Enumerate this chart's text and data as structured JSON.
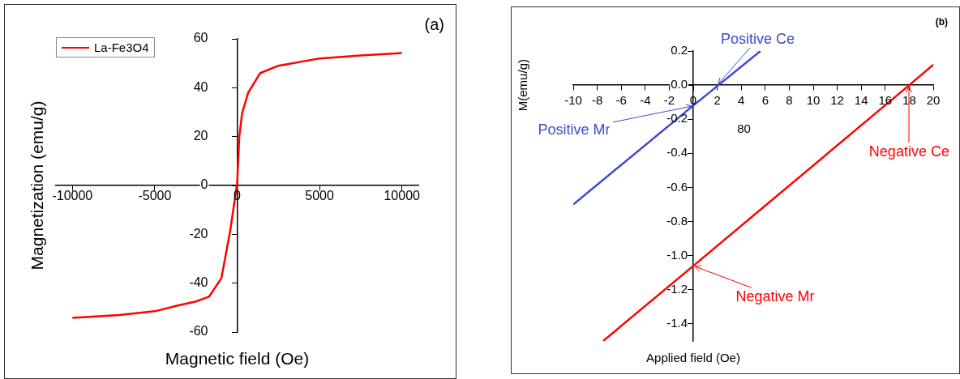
{
  "chart_data": [
    {
      "type": "line",
      "title": "(a)",
      "xlabel": "Magnetic field (Oe)",
      "ylabel": "Magnetization (emu/g)",
      "marker": "none",
      "grid": false,
      "legend": "top left",
      "x": [
        -10000,
        -7150,
        -5000,
        -3500,
        -2500,
        -1700,
        -960,
        -420,
        -150,
        0,
        40,
        130,
        300,
        670,
        1400,
        2500,
        5000,
        7500,
        10000
      ],
      "series": [
        {
          "name": "La-Fe3O4",
          "color": "#ff0000",
          "values": [
            -54.2,
            -53,
            -51.5,
            -49,
            -47.5,
            -45.5,
            -38,
            -18.5,
            -6,
            1,
            7,
            20,
            29.5,
            38,
            46,
            49,
            52,
            53.2,
            54.2
          ]
        }
      ],
      "xlim": [
        -11000,
        11000
      ],
      "xticks": [
        -10000,
        -5000,
        0,
        5000,
        10000
      ],
      "ylim": [
        -60,
        60
      ],
      "yticks": [
        -60,
        -40,
        -20,
        0,
        20,
        40,
        60
      ]
    },
    {
      "type": "line",
      "title": "(b)",
      "xlabel": "Applied field (Oe)",
      "ylabel": "M(emu/g)",
      "marker": "none",
      "grid": false,
      "legend": false,
      "series": [
        {
          "color": "#3f48cc",
          "x": [
            -10,
            0,
            2.1,
            5.6
          ],
          "values": [
            -0.7,
            -0.12,
            0,
            0.2
          ]
        },
        {
          "color": "#ff0000",
          "x": [
            -7.5,
            0,
            18,
            20
          ],
          "values": [
            -1.5,
            -1.06,
            0,
            0.12
          ]
        }
      ],
      "xlim": [
        -10,
        20
      ],
      "xticks": [
        -10,
        -8,
        -6,
        -4,
        -2,
        0,
        2,
        4,
        6,
        8,
        10,
        12,
        14,
        16,
        18,
        20
      ],
      "ylim": [
        -1.5,
        0.2
      ],
      "yticks": [
        {
          "value": -1.4,
          "label": "-1.4"
        },
        {
          "value": -1.2,
          "label": "-1.2"
        },
        {
          "value": -1.0,
          "label": "-1.0"
        },
        {
          "value": -0.8,
          "label": "-0.8"
        },
        {
          "value": -0.6,
          "label": "-0.6"
        },
        {
          "value": -0.4,
          "label": "-0.4"
        },
        {
          "value": -0.2,
          "label": "-0.2"
        },
        {
          "value": 0,
          "label": "0.0"
        },
        {
          "value": 0.2,
          "label": "0.2"
        }
      ],
      "annotations": [
        {
          "text": "Positive Ce",
          "x": 2,
          "y": 0
        },
        {
          "text": "Positive Mr",
          "x": 0,
          "y": -0.12
        },
        {
          "text": "Negative Ce",
          "x": 18,
          "y": 0
        },
        {
          "text": "Negative Mr",
          "x": 0,
          "y": -1.06
        },
        "80"
      ]
    }
  ]
}
